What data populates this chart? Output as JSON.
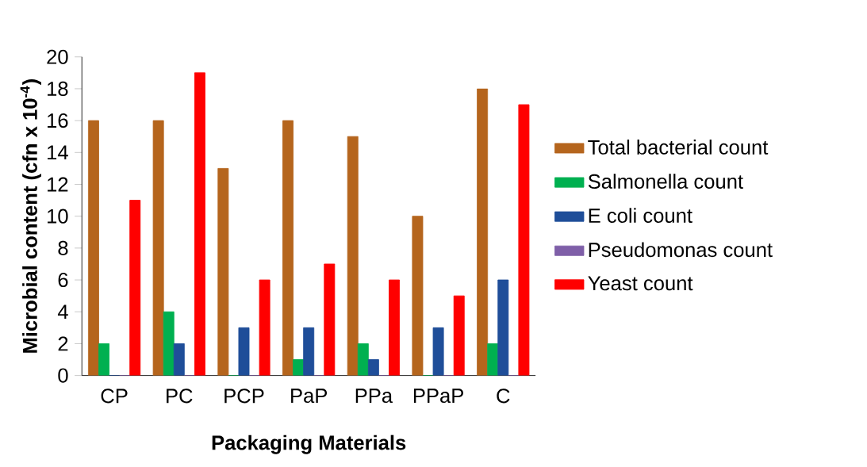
{
  "chart_data": {
    "type": "bar",
    "xlabel": "Packaging Materials",
    "ylabel": "Microbial content (cfn x 10$^{-4}$)",
    "categories": [
      "CP",
      "PC",
      "PCP",
      "PaP",
      "PPa",
      "PPaP",
      "C"
    ],
    "series": [
      {
        "name": "Total bacterial count",
        "color": "#b5651d",
        "values": [
          16,
          16,
          13,
          16,
          15,
          10,
          18
        ]
      },
      {
        "name": "Salmonella count",
        "color": "#00b050",
        "values": [
          2,
          4,
          0,
          1,
          2,
          0,
          2
        ]
      },
      {
        "name": "E coli count",
        "color": "#1f4e99",
        "values": [
          0,
          2,
          3,
          3,
          1,
          3,
          6
        ]
      },
      {
        "name": "Pseudomonas count",
        "color": "#7f5fa8",
        "values": [
          0,
          0,
          0,
          0,
          0,
          0,
          0
        ]
      },
      {
        "name": "Yeast count",
        "color": "#ff0000",
        "values": [
          11,
          19,
          6,
          7,
          6,
          5,
          17
        ]
      }
    ],
    "ylim": [
      0,
      20
    ],
    "yticks": [
      0,
      2,
      4,
      6,
      8,
      10,
      12,
      14,
      16,
      18,
      20
    ],
    "legend": "right"
  }
}
